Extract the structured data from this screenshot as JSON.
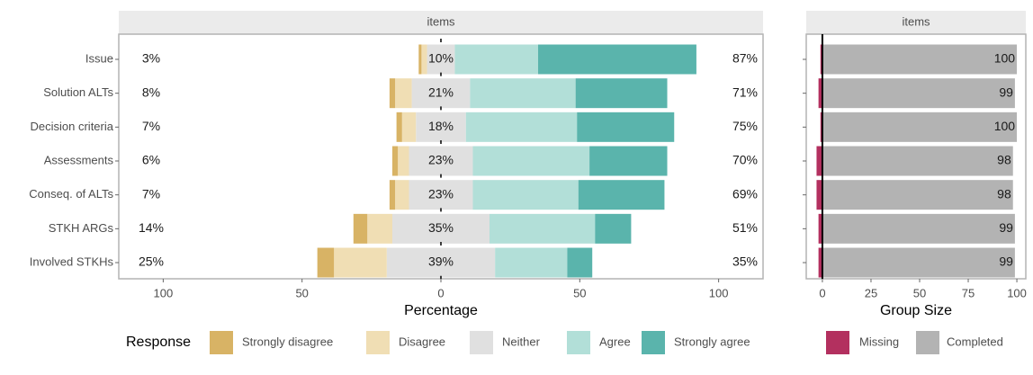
{
  "chart_data": [
    {
      "type": "likert",
      "strip": "items",
      "xlabel": "Percentage",
      "legend_title": "Response",
      "categories": [
        "Issue",
        "Solution ALTs",
        "Decision criteria",
        "Assessments",
        "Conseq. of ALTs",
        "STKH ARGs",
        "Involved STKHs"
      ],
      "series": [
        {
          "name": "Strongly disagree",
          "color": "#d8b365",
          "side": "low",
          "values": [
            1,
            2,
            2,
            2,
            2,
            5,
            6
          ]
        },
        {
          "name": "Disagree",
          "color": "#f0deb4",
          "side": "low",
          "values": [
            2,
            6,
            5,
            4,
            5,
            9,
            19
          ]
        },
        {
          "name": "Neither",
          "color": "#e0e0e0",
          "side": "neutral",
          "values": [
            10,
            21,
            18,
            23,
            23,
            35,
            39
          ]
        },
        {
          "name": "Agree",
          "color": "#b2dfd8",
          "side": "high",
          "values": [
            30,
            38,
            40,
            42,
            38,
            38,
            26
          ]
        },
        {
          "name": "Strongly agree",
          "color": "#5ab4ac",
          "side": "high",
          "values": [
            57,
            33,
            35,
            28,
            31,
            13,
            9
          ]
        }
      ],
      "low_labels": [
        "3%",
        "8%",
        "7%",
        "6%",
        "7%",
        "14%",
        "25%"
      ],
      "neutral_labels": [
        "10%",
        "21%",
        "18%",
        "23%",
        "23%",
        "35%",
        "39%"
      ],
      "high_labels": [
        "87%",
        "71%",
        "75%",
        "70%",
        "69%",
        "51%",
        "35%"
      ],
      "xlim": [
        -116,
        116
      ],
      "xticks": [
        {
          "value": -100,
          "label": "100"
        },
        {
          "value": -50,
          "label": "50"
        },
        0,
        50,
        100
      ]
    },
    {
      "type": "groupbar",
      "strip": "items",
      "xlabel": "Group Size",
      "series": [
        {
          "name": "Missing",
          "color": "#b3305f",
          "direction": "left",
          "values": [
            1,
            2,
            1,
            3,
            3,
            2,
            2
          ]
        },
        {
          "name": "Completed",
          "color": "#b3b3b3",
          "direction": "right",
          "values": [
            100,
            99,
            100,
            98,
            98,
            99,
            99
          ]
        }
      ],
      "xlim": [
        -8.3,
        104.6
      ],
      "xticks": [
        0,
        25,
        50,
        75,
        100
      ]
    }
  ]
}
